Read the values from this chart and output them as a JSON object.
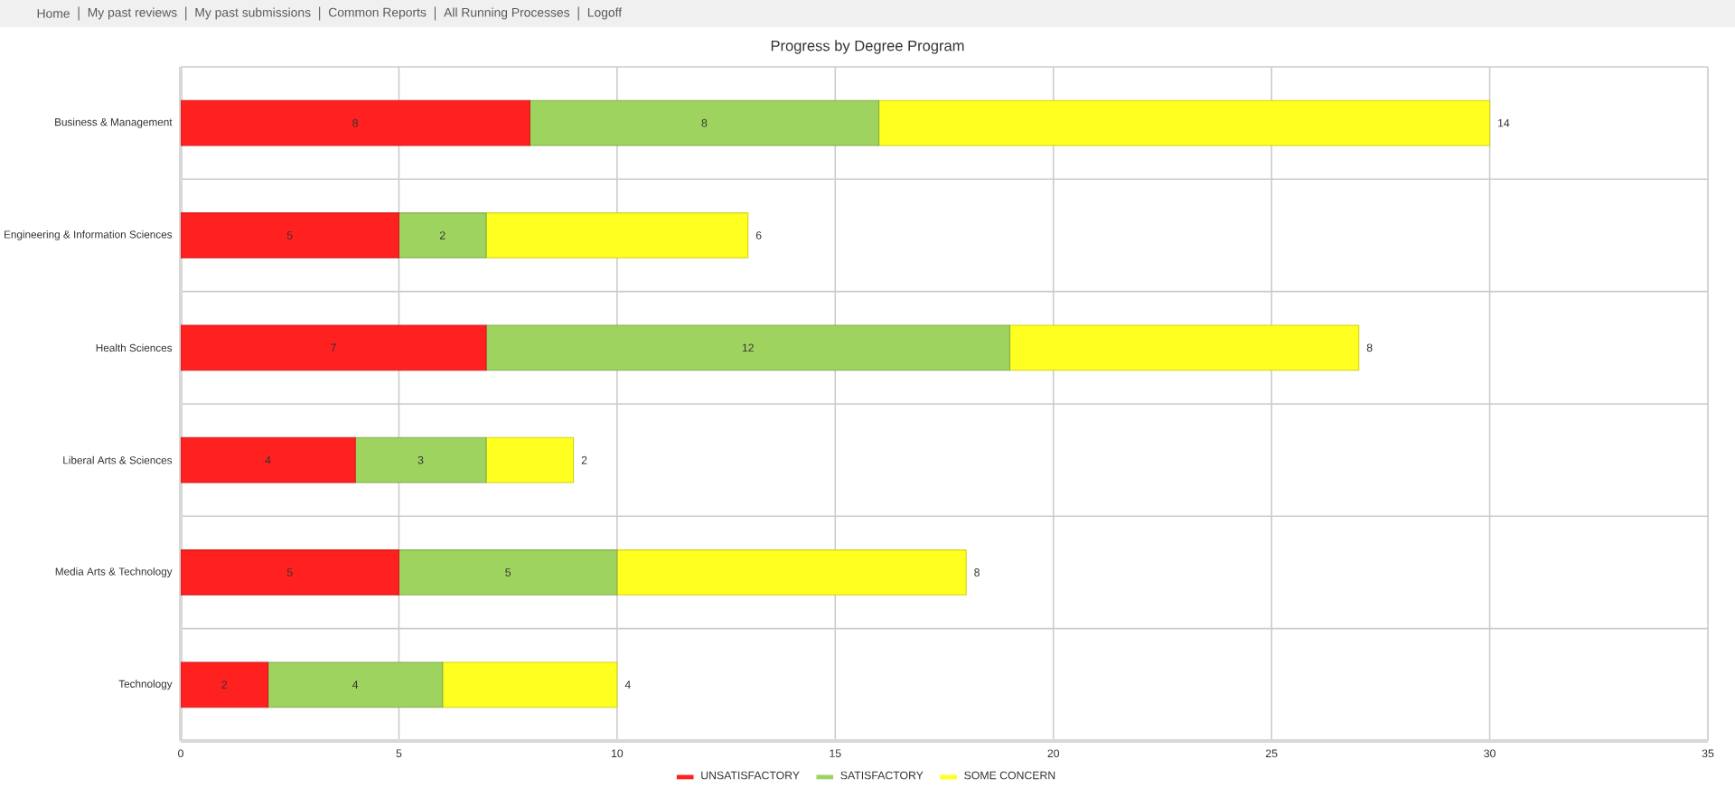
{
  "chart_data": {
    "type": "bar",
    "orientation": "horizontal",
    "stacked": true,
    "title": "Progress by Degree Program",
    "categories": [
      "Business & Management",
      "Engineering & Information Sciences",
      "Health Sciences",
      "Liberal Arts & Sciences",
      "Media Arts & Technology",
      "Technology"
    ],
    "series": [
      {
        "name": "UNSATISFACTORY",
        "color": "#ff2020",
        "values": [
          8,
          5,
          7,
          4,
          5,
          2
        ]
      },
      {
        "name": "SATISFACTORY",
        "color": "#9fd35f",
        "values": [
          8,
          2,
          12,
          3,
          5,
          4
        ]
      },
      {
        "name": "SOME CONCERN",
        "color": "#ffff20",
        "values": [
          14,
          6,
          8,
          2,
          8,
          4
        ]
      }
    ],
    "xlim": [
      0,
      35
    ],
    "xticks": [
      0,
      5,
      10,
      15,
      20,
      25,
      30,
      35
    ],
    "grid": true,
    "legend": "bottom",
    "data_labels": true,
    "annotations": [
      "Home",
      "My past reviews",
      "My past submissions",
      "Common Reports",
      "All Running Processes",
      "Logoff"
    ]
  }
}
